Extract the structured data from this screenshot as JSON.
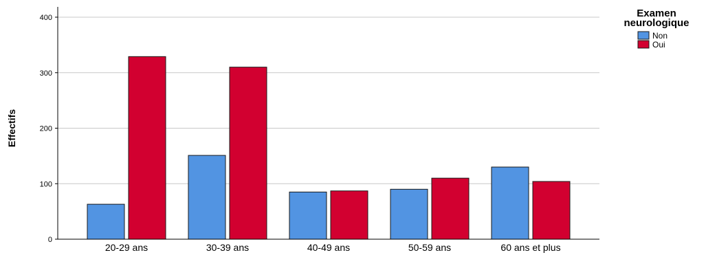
{
  "chart_data": {
    "type": "bar",
    "title": "",
    "xlabel": "",
    "ylabel": "Effectifs",
    "ylim": [
      0,
      400
    ],
    "yticks": [
      0,
      100,
      200,
      300,
      400
    ],
    "grid": true,
    "legend_title": "Examen neurologique",
    "legend_position": "top-right",
    "categories": [
      "20-29 ans",
      "30-39 ans",
      "40-49 ans",
      "50-59 ans",
      "60 ans et plus"
    ],
    "series": [
      {
        "name": "Non",
        "color": "#5294e2",
        "values": [
          63,
          151,
          85,
          90,
          130
        ]
      },
      {
        "name": "Oui",
        "color": "#d20030",
        "values": [
          329,
          310,
          87,
          110,
          104
        ]
      }
    ]
  }
}
